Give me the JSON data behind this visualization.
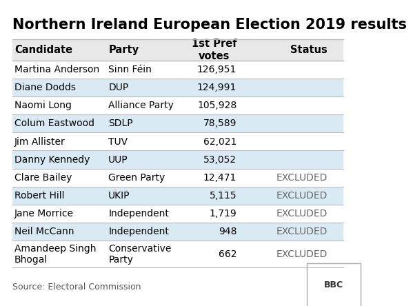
{
  "title": "Northern Ireland European Election 2019 results",
  "columns": [
    "Candidate",
    "Party",
    "1st Pref\nvotes",
    "Status"
  ],
  "rows": [
    [
      "Martina Anderson",
      "Sinn Féin",
      "126,951",
      ""
    ],
    [
      "Diane Dodds",
      "DUP",
      "124,991",
      ""
    ],
    [
      "Naomi Long",
      "Alliance Party",
      "105,928",
      ""
    ],
    [
      "Colum Eastwood",
      "SDLP",
      "78,589",
      ""
    ],
    [
      "Jim Allister",
      "TUV",
      "62,021",
      ""
    ],
    [
      "Danny Kennedy",
      "UUP",
      "53,052",
      ""
    ],
    [
      "Clare Bailey",
      "Green Party",
      "12,471",
      "EXCLUDED"
    ],
    [
      "Robert Hill",
      "UKIP",
      "5,115",
      "EXCLUDED"
    ],
    [
      "Jane Morrice",
      "Independent",
      "1,719",
      "EXCLUDED"
    ],
    [
      "Neil McCann",
      "Independent",
      "948",
      "EXCLUDED"
    ],
    [
      "Amandeep Singh\nBhogal",
      "Conservative\nParty",
      "662",
      "EXCLUDED"
    ]
  ],
  "header_bg": "#e8e8e8",
  "row_bg_white": "#ffffff",
  "row_bg_blue": "#daeaf5",
  "header_text_color": "#000000",
  "cell_text_color": "#000000",
  "excluded_text_color": "#666666",
  "border_color": "#bbbbbb",
  "title_color": "#000000",
  "source_text": "Source: Electoral Commission",
  "bbc_text": "BBC",
  "title_fontsize": 15,
  "header_fontsize": 10.5,
  "cell_fontsize": 10,
  "source_fontsize": 9
}
